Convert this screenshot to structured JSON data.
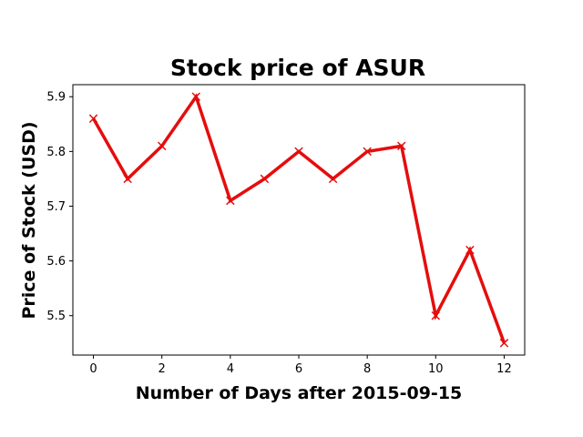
{
  "chart_data": {
    "type": "line",
    "title": "Stock price of ASUR",
    "xlabel": "Number of Days after 2015-09-15",
    "ylabel": "Price of Stock (USD)",
    "x": [
      0,
      1,
      2,
      3,
      4,
      5,
      6,
      7,
      8,
      9,
      10,
      11,
      12
    ],
    "series": [
      {
        "values": [
          5.86,
          5.75,
          5.81,
          5.9,
          5.71,
          5.75,
          5.8,
          5.75,
          5.8,
          5.81,
          5.5,
          5.62,
          5.45
        ],
        "color": "#e50d0d",
        "marker": "x"
      }
    ],
    "xlim": [
      -0.6,
      12.6
    ],
    "ylim": [
      5.428,
      5.922
    ],
    "xticks": [
      "0",
      "2",
      "4",
      "6",
      "8",
      "10",
      "12"
    ],
    "yticks": [
      "5.5",
      "5.6",
      "5.7",
      "5.8",
      "5.9"
    ],
    "grid": false,
    "legend": "none"
  }
}
